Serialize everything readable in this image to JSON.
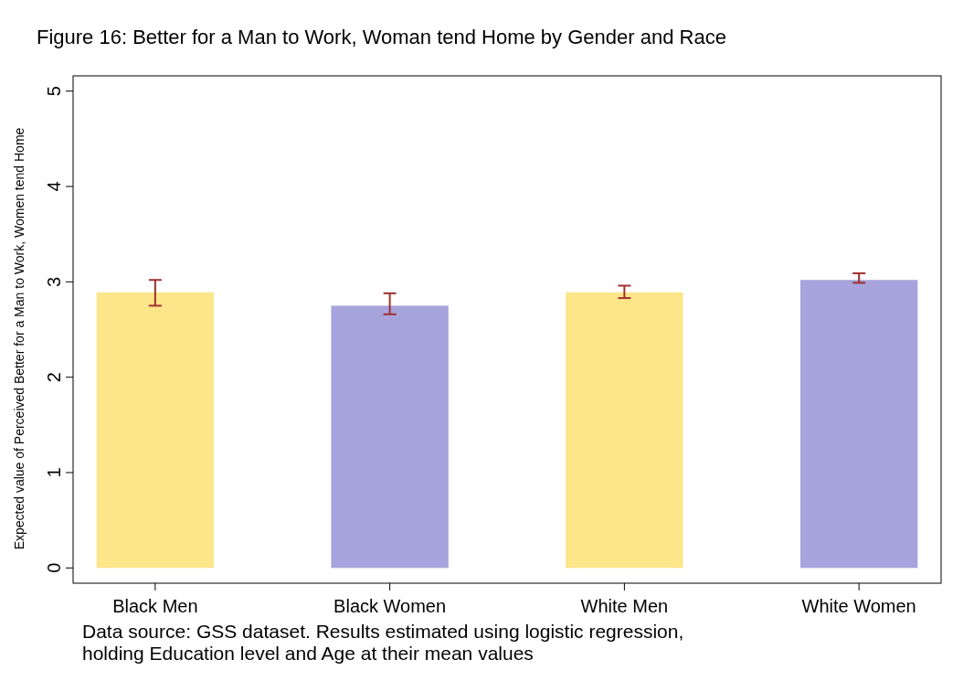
{
  "chart_data": {
    "type": "bar",
    "title": "Figure 16: Better for a Man to Work, Woman tend Home by Gender and Race",
    "ylabel": "Expected value of Perceived Better for a Man to Work, Women tend Home",
    "categories": [
      "Black Men",
      "Black Women",
      "White Men",
      "White Women"
    ],
    "values": [
      2.89,
      2.75,
      2.89,
      3.02
    ],
    "colors": [
      "#fde58a",
      "#a7a3dc",
      "#fde58a",
      "#a7a3dc"
    ],
    "errors": [
      [
        2.75,
        3.02
      ],
      [
        2.66,
        2.88
      ],
      [
        2.83,
        2.96
      ],
      [
        2.99,
        3.09
      ]
    ],
    "ylim": [
      -0.16,
      5.16
    ],
    "yticks": [
      0,
      1,
      2,
      3,
      4,
      5
    ],
    "annotations": [
      "Data source: GSS dataset. Results estimated using logistic regression, holding Education level and Age at their mean values"
    ]
  }
}
